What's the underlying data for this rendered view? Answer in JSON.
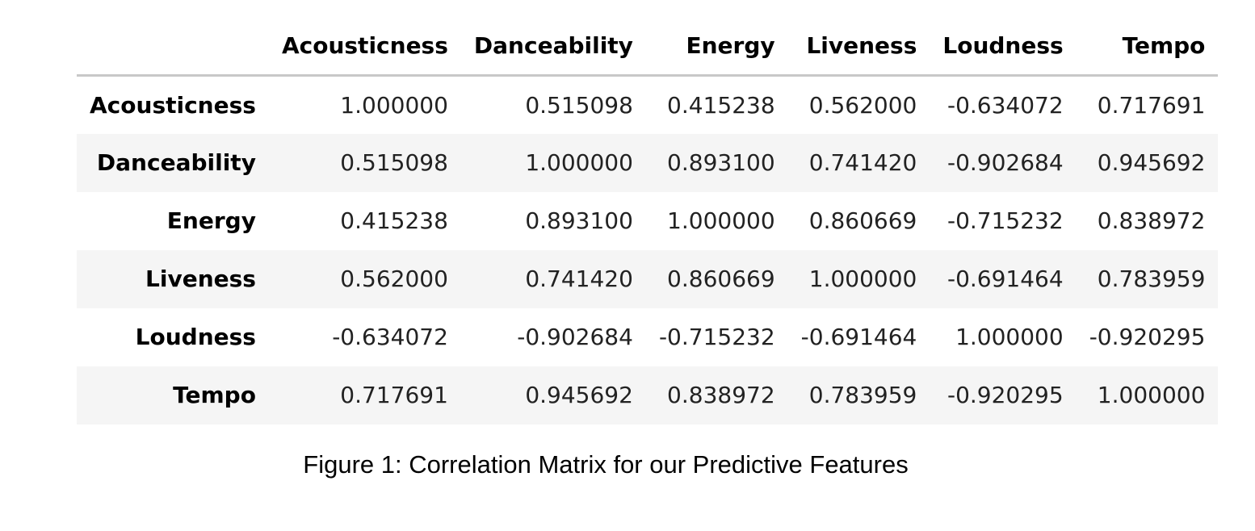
{
  "chart_data": {
    "type": "table",
    "columns": [
      "",
      "Acousticness",
      "Danceability",
      "Energy",
      "Liveness",
      "Loudness",
      "Tempo"
    ],
    "rows": [
      {
        "label": "Acousticness",
        "values": [
          "1.000000",
          "0.515098",
          "0.415238",
          "0.562000",
          "-0.634072",
          "0.717691"
        ]
      },
      {
        "label": "Danceability",
        "values": [
          "0.515098",
          "1.000000",
          "0.893100",
          "0.741420",
          "-0.902684",
          "0.945692"
        ]
      },
      {
        "label": "Energy",
        "values": [
          "0.415238",
          "0.893100",
          "1.000000",
          "0.860669",
          "-0.715232",
          "0.838972"
        ]
      },
      {
        "label": "Liveness",
        "values": [
          "0.562000",
          "0.741420",
          "0.860669",
          "1.000000",
          "-0.691464",
          "0.783959"
        ]
      },
      {
        "label": "Loudness",
        "values": [
          "-0.634072",
          "-0.902684",
          "-0.715232",
          "-0.691464",
          "1.000000",
          "-0.920295"
        ]
      },
      {
        "label": "Tempo",
        "values": [
          "0.717691",
          "0.945692",
          "0.838972",
          "0.783959",
          "-0.920295",
          "1.000000"
        ]
      }
    ],
    "row_stripe_color": "#f5f5f5"
  },
  "caption": "Figure 1: Correlation Matrix for our Predictive Features"
}
